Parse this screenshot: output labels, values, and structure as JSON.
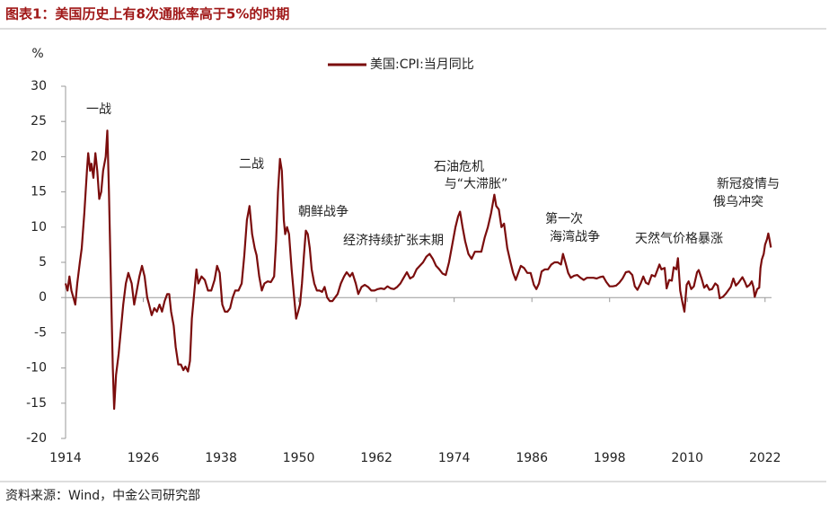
{
  "header": {
    "title": "图表1：美国历史上有8次通胀率高于5%的时期"
  },
  "footer": {
    "source": "资料来源：Wind，中金公司研究部"
  },
  "chart_data": {
    "type": "line",
    "y_label": "%",
    "legend": "top",
    "xlim": [
      1914,
      2023
    ],
    "xticks": [
      1914,
      1926,
      1938,
      1950,
      1962,
      1974,
      1986,
      1998,
      2010,
      2022
    ],
    "ylim": [
      -20,
      30
    ],
    "yticks": [
      -20,
      -15,
      -10,
      -5,
      0,
      5,
      10,
      15,
      20,
      25,
      30
    ],
    "annotations": [
      [
        "一战"
      ],
      [
        "二战"
      ],
      [
        "朝鲜战争"
      ],
      [
        "经济持续扩张末期"
      ],
      [
        "石油危机",
        "与“大滞胀”"
      ],
      [
        "第一次",
        "海湾战争"
      ],
      [
        "天然气价格暴涨"
      ],
      [
        "新冠疫情与",
        "俄乌冲突"
      ]
    ],
    "x": [
      1914.0,
      1914.3,
      1914.6,
      1914.9,
      1915.2,
      1915.5,
      1915.8,
      1916.2,
      1916.5,
      1916.9,
      1917.3,
      1917.5,
      1917.8,
      1918.0,
      1918.3,
      1918.6,
      1918.9,
      1919.2,
      1919.5,
      1919.8,
      1920.2,
      1920.45,
      1920.7,
      1921.0,
      1921.3,
      1921.5,
      1921.8,
      1922.2,
      1922.5,
      1922.9,
      1923.3,
      1923.7,
      1924.2,
      1924.6,
      1925.0,
      1925.4,
      1925.8,
      1926.2,
      1926.6,
      1926.9,
      1927.3,
      1927.7,
      1928.1,
      1928.5,
      1928.9,
      1929.3,
      1929.7,
      1930.0,
      1930.3,
      1930.7,
      1931.0,
      1931.4,
      1931.8,
      1932.2,
      1932.5,
      1932.9,
      1933.2,
      1933.5,
      1933.8,
      1934.2,
      1934.5,
      1935.0,
      1935.5,
      1936.0,
      1936.5,
      1937.0,
      1937.4,
      1937.8,
      1938.2,
      1938.6,
      1939.0,
      1939.4,
      1939.8,
      1940.2,
      1940.7,
      1941.2,
      1941.6,
      1942.0,
      1942.4,
      1942.8,
      1943.2,
      1943.5,
      1943.9,
      1944.3,
      1944.7,
      1945.2,
      1945.7,
      1946.2,
      1946.5,
      1946.8,
      1947.1,
      1947.4,
      1947.7,
      1947.9,
      1948.2,
      1948.5,
      1948.9,
      1949.3,
      1949.6,
      1949.9,
      1950.2,
      1950.5,
      1950.8,
      1951.1,
      1951.4,
      1951.7,
      1952.0,
      1952.4,
      1952.8,
      1953.2,
      1953.6,
      1954.0,
      1954.4,
      1954.8,
      1955.2,
      1955.6,
      1956.0,
      1956.5,
      1957.0,
      1957.4,
      1957.9,
      1958.3,
      1958.8,
      1959.2,
      1959.7,
      1960.2,
      1960.7,
      1961.2,
      1961.7,
      1962.2,
      1962.7,
      1963.2,
      1963.7,
      1964.2,
      1964.7,
      1965.2,
      1965.7,
      1966.2,
      1966.7,
      1967.2,
      1967.7,
      1968.2,
      1968.7,
      1969.2,
      1969.7,
      1970.2,
      1970.7,
      1971.2,
      1971.7,
      1972.2,
      1972.7,
      1973.2,
      1973.7,
      1974.2,
      1974.6,
      1974.9,
      1975.3,
      1975.7,
      1976.2,
      1976.7,
      1977.2,
      1977.7,
      1978.2,
      1978.7,
      1979.2,
      1979.7,
      1980.2,
      1980.5,
      1980.9,
      1981.3,
      1981.7,
      1982.2,
      1982.7,
      1983.1,
      1983.5,
      1983.9,
      1984.3,
      1984.8,
      1985.3,
      1985.8,
      1986.3,
      1986.7,
      1987.1,
      1987.5,
      1988.0,
      1988.5,
      1989.0,
      1989.5,
      1990.0,
      1990.5,
      1990.8,
      1991.2,
      1991.6,
      1992.0,
      1992.5,
      1993.0,
      1993.5,
      1994.0,
      1994.5,
      1995.0,
      1995.5,
      1996.0,
      1996.5,
      1997.0,
      1997.5,
      1998.0,
      1998.5,
      1999.0,
      1999.5,
      2000.0,
      2000.5,
      2001.0,
      2001.5,
      2001.9,
      2002.3,
      2002.8,
      2003.2,
      2003.6,
      2004.0,
      2004.5,
      2005.0,
      2005.7,
      2006.0,
      2006.5,
      2006.8,
      2007.2,
      2007.6,
      2007.9,
      2008.3,
      2008.55,
      2008.9,
      2009.2,
      2009.55,
      2009.9,
      2010.2,
      2010.6,
      2011.0,
      2011.5,
      2011.75,
      2012.2,
      2012.6,
      2013.0,
      2013.4,
      2013.8,
      2014.3,
      2014.7,
      2015.0,
      2015.5,
      2015.9,
      2016.3,
      2016.7,
      2017.1,
      2017.5,
      2017.9,
      2018.5,
      2018.9,
      2019.2,
      2019.6,
      2019.95,
      2020.2,
      2020.4,
      2020.8,
      2021.1,
      2021.3,
      2021.5,
      2021.8,
      2022.0,
      2022.3,
      2022.5,
      2022.7,
      2022.9
    ],
    "series": [
      {
        "name": "美国:CPI:当月同比",
        "color": "#7b0d0d",
        "values": [
          2,
          1,
          3,
          1,
          0,
          -1,
          2,
          5,
          7,
          12,
          18,
          20.5,
          18,
          19,
          17,
          20.5,
          18,
          14,
          15,
          18,
          20,
          23.7,
          15,
          2,
          -10,
          -15.8,
          -11,
          -8,
          -5,
          -1,
          2,
          3.5,
          2,
          -1,
          1,
          3,
          4.5,
          3,
          0,
          -1,
          -2.5,
          -1.5,
          -2,
          -1,
          -2,
          -0.5,
          0.5,
          0.5,
          -2,
          -4,
          -7,
          -9.5,
          -9.5,
          -10.3,
          -9.8,
          -10.5,
          -9,
          -3,
          0,
          4,
          2,
          3,
          2.5,
          1,
          1,
          2.5,
          4.5,
          3.5,
          -1,
          -2,
          -2,
          -1.5,
          0,
          1,
          1,
          2,
          6,
          11,
          13,
          9,
          7,
          6,
          3,
          1,
          2,
          2.3,
          2.2,
          3,
          8,
          15,
          19.7,
          18,
          11,
          9,
          10,
          9,
          4,
          0,
          -3,
          -2,
          -1,
          2,
          6,
          9.5,
          9,
          7,
          4,
          2,
          1,
          1,
          0.8,
          1.5,
          0,
          -0.5,
          -0.5,
          0,
          0.5,
          2,
          3,
          3.6,
          3,
          3.5,
          2,
          0.5,
          1.5,
          1.8,
          1.5,
          1,
          1,
          1.2,
          1.3,
          1.2,
          1.6,
          1.3,
          1.2,
          1.5,
          2,
          2.8,
          3.6,
          2.7,
          3,
          4,
          4.5,
          5,
          5.8,
          6.2,
          5.5,
          4.5,
          4,
          3.4,
          3.2,
          5,
          7.5,
          10,
          11.5,
          12.2,
          10,
          8,
          6.2,
          5.5,
          6.5,
          6.5,
          6.5,
          8.5,
          10,
          12,
          14.6,
          13,
          12.5,
          10,
          10.5,
          7,
          5,
          3.5,
          2.5,
          3.5,
          4.5,
          4.2,
          3.5,
          3.5,
          1.8,
          1.2,
          2,
          3.7,
          4,
          4,
          4.7,
          5,
          5,
          4.7,
          6.2,
          4.9,
          3.5,
          2.8,
          3.1,
          3.2,
          2.8,
          2.5,
          2.8,
          2.8,
          2.8,
          2.7,
          2.9,
          3,
          2.2,
          1.6,
          1.6,
          1.7,
          2.1,
          2.7,
          3.6,
          3.7,
          3.2,
          1.6,
          1.1,
          2,
          3,
          2.1,
          1.9,
          3.2,
          3,
          4.7,
          4,
          4.2,
          1.3,
          2.5,
          2.4,
          4.3,
          4,
          5.6,
          1,
          -0.5,
          -2,
          1.8,
          2.3,
          1.2,
          1.6,
          3.6,
          3.9,
          2.7,
          1.4,
          1.8,
          1.1,
          1.2,
          2,
          1.7,
          -0.1,
          0.1,
          0.5,
          1,
          1.5,
          2.7,
          1.7,
          2.1,
          2.9,
          2.2,
          1.5,
          1.8,
          2.3,
          1.5,
          0.1,
          1.2,
          1.4,
          4.2,
          5.4,
          6.2,
          7.5,
          8.3,
          9.1,
          8.2,
          7.1
        ]
      }
    ]
  }
}
